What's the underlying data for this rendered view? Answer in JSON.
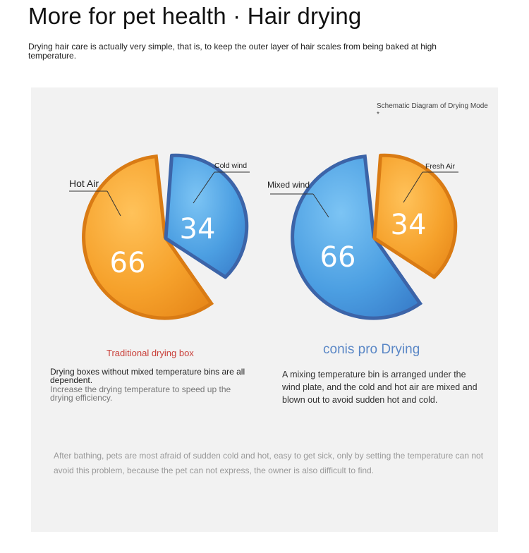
{
  "header": {
    "title": "More for pet health · Hair drying",
    "subtitle": "Drying hair care is actually very simple, that is, to keep the outer layer of hair scales from being baked at high temperature."
  },
  "panel": {
    "schematic_label": "Schematic Diagram of Drying Mode *",
    "left_chart": {
      "big_label": "Hot Air",
      "big_value": "66",
      "small_label": "Cold wind",
      "small_value": "34",
      "caption": "Traditional drying box",
      "description_main": "Drying boxes without mixed temperature bins are all dependent.",
      "description_sub": "Increase the drying temperature to speed up the drying efficiency."
    },
    "right_chart": {
      "big_label": "Mixed wind",
      "big_value": "66",
      "small_label": "Fresh Air",
      "small_value": "34",
      "caption": "conis pro Drying",
      "description": "A mixing temperature bin is arranged under the wind plate, and the cold and hot air are mixed and blown out to avoid sudden hot and cold."
    },
    "bottom_note": "After bathing, pets are most afraid of sudden cold and hot, easy to get sick, only by setting the temperature can not avoid this problem, because the pet can not express, the owner is also difficult to find."
  },
  "colors": {
    "orange": "#f29a24",
    "orange_dark": "#d97b14",
    "blue": "#4a9ee0",
    "blue_dark": "#3c64a8",
    "caption_red": "#c9403a",
    "caption_blue": "#5a87c6"
  }
}
